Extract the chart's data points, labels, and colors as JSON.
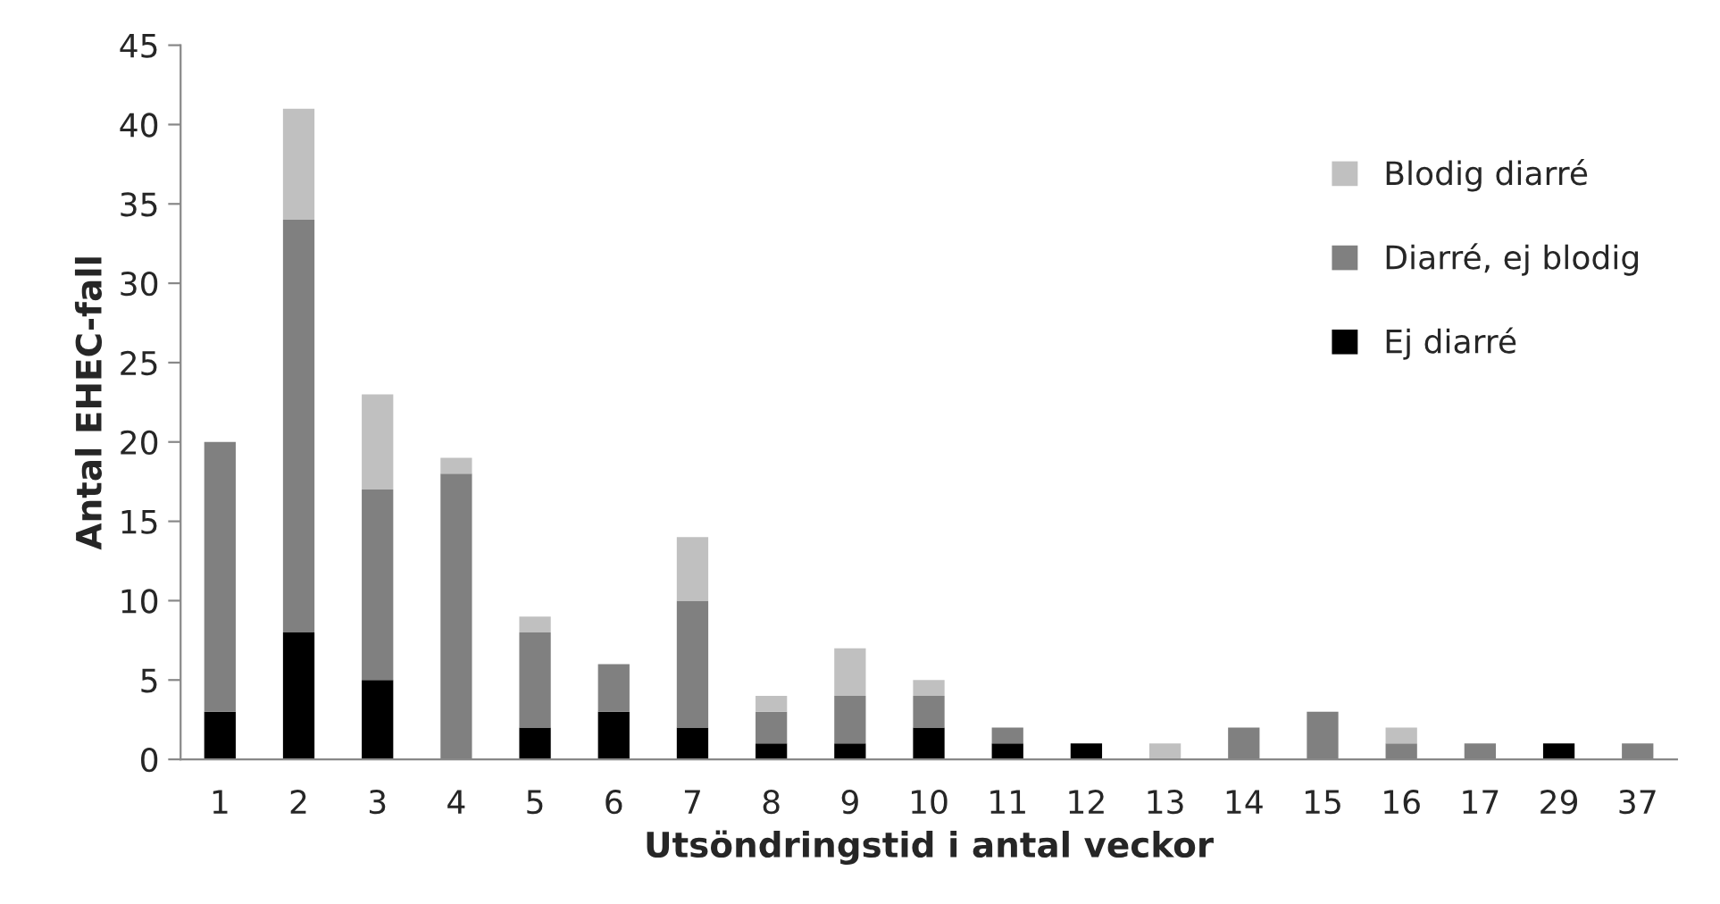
{
  "chart_data": {
    "type": "bar",
    "stacked": true,
    "xlabel": "Utsöndringstid i antal veckor",
    "ylabel": "Antal EHEC-fall",
    "categories": [
      "1",
      "2",
      "3",
      "4",
      "5",
      "6",
      "7",
      "8",
      "9",
      "10",
      "11",
      "12",
      "13",
      "14",
      "15",
      "16",
      "17",
      "29",
      "37"
    ],
    "series": [
      {
        "name": "Ej diarré",
        "color": "#000000",
        "values": [
          3,
          8,
          5,
          0,
          2,
          3,
          2,
          1,
          1,
          2,
          1,
          1,
          0,
          0,
          0,
          0,
          0,
          1,
          0
        ]
      },
      {
        "name": "Diarré, ej blodig",
        "color": "#808080",
        "values": [
          17,
          26,
          12,
          18,
          6,
          3,
          8,
          2,
          3,
          2,
          1,
          0,
          0,
          2,
          3,
          1,
          1,
          0,
          1
        ]
      },
      {
        "name": "Blodig diarré",
        "color": "#c0c0c0",
        "values": [
          0,
          7,
          6,
          1,
          1,
          0,
          4,
          1,
          3,
          1,
          0,
          0,
          1,
          0,
          0,
          1,
          0,
          0,
          0
        ]
      }
    ],
    "ylim": [
      0,
      45
    ],
    "yticks": [
      0,
      5,
      10,
      15,
      20,
      25,
      30,
      35,
      40,
      45
    ],
    "grid": false,
    "legend": "right"
  }
}
